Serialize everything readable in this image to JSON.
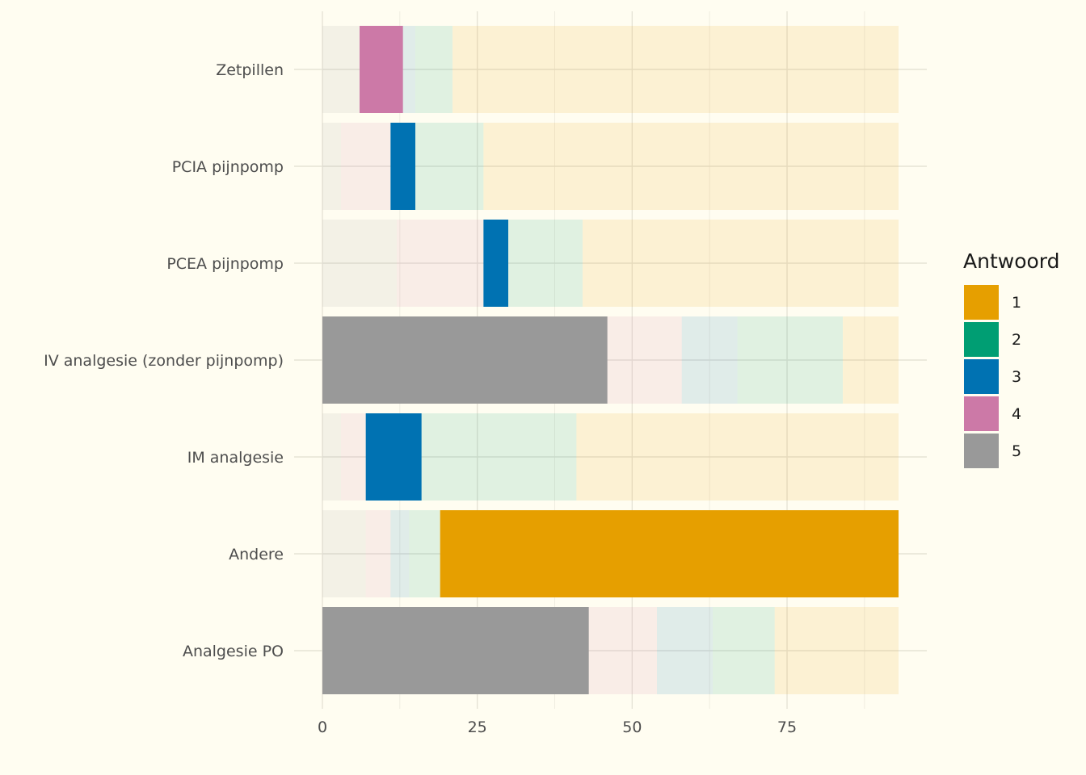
{
  "chart_data": {
    "type": "bar",
    "orientation": "horizontal",
    "stacked": true,
    "categories": [
      "Analgesie PO",
      "Andere",
      "IM analgesie",
      "IV analgesie (zonder pijnpomp)",
      "PCEA pijnpomp",
      "PCIA pijnpomp",
      "Zetpillen"
    ],
    "series": [
      {
        "name": "5",
        "values": [
          43,
          7,
          3,
          46,
          12,
          3,
          6
        ]
      },
      {
        "name": "4",
        "values": [
          11,
          4,
          4,
          12,
          14,
          8,
          7
        ]
      },
      {
        "name": "3",
        "values": [
          9,
          3,
          9,
          9,
          4,
          4,
          2
        ]
      },
      {
        "name": "2",
        "values": [
          10,
          5,
          25,
          17,
          12,
          11,
          6
        ]
      },
      {
        "name": "1",
        "values": [
          20,
          74,
          52,
          9,
          51,
          67,
          72
        ]
      }
    ],
    "highlighted_series_by_category": {
      "Analgesie PO": "5",
      "Andere": "1",
      "IM analgesie": "3",
      "IV analgesie (zonder pijnpomp)": "5",
      "PCEA pijnpomp": "3",
      "PCIA pijnpomp": "3",
      "Zetpillen": "4"
    },
    "colors": {
      "1": "#E69F00",
      "2": "#009E73",
      "3": "#0072B2",
      "4": "#CC79A7",
      "5": "#999999"
    },
    "faded_opacity": 0.12,
    "x_ticks": [
      0,
      25,
      50,
      75
    ],
    "xlim": [
      0,
      93
    ],
    "xlabel": "",
    "ylabel": "",
    "legend": {
      "title": "Antwoord",
      "entries": [
        "1",
        "2",
        "3",
        "4",
        "5"
      ],
      "position": "right"
    },
    "grid": true
  }
}
